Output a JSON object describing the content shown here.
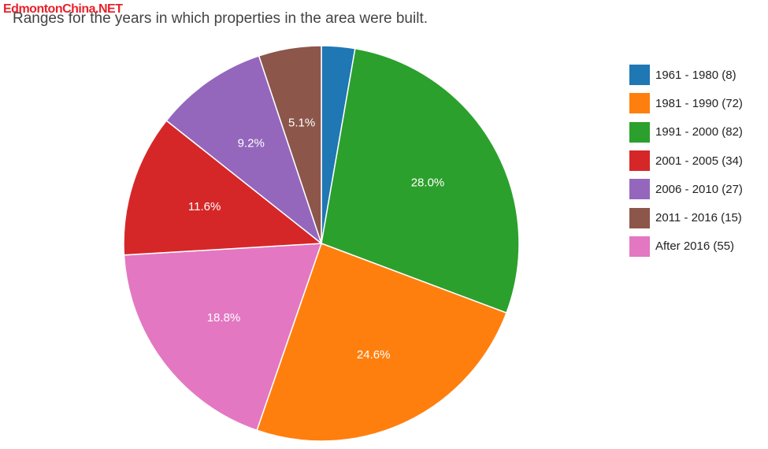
{
  "watermark": "EdmontonChina.NET",
  "chart_data": {
    "type": "pie",
    "title": "Ranges for the years in which properties in the area were built.",
    "legend_position": "right",
    "slices": [
      {
        "label": "1961 - 1980 (8)",
        "value": 8,
        "color": "#1f77b4",
        "pct_label": ""
      },
      {
        "label": "1981 - 1990 (72)",
        "value": 72,
        "color": "#ff7f0e",
        "pct_label": "24.6%"
      },
      {
        "label": "1991 - 2000 (82)",
        "value": 82,
        "color": "#2ca02c",
        "pct_label": "28.0%"
      },
      {
        "label": "2001 - 2005 (34)",
        "value": 34,
        "color": "#d62728",
        "pct_label": "11.6%"
      },
      {
        "label": "2006 - 2010 (27)",
        "value": 27,
        "color": "#9467bd",
        "pct_label": "9.2%"
      },
      {
        "label": "2011 - 2016 (15)",
        "value": 15,
        "color": "#8c564b",
        "pct_label": "5.1%"
      },
      {
        "label": "After 2016 (55)",
        "value": 55,
        "color": "#e377c2",
        "pct_label": "18.8%"
      }
    ],
    "clockwise_order": [
      0,
      2,
      1,
      6,
      3,
      4,
      5
    ]
  }
}
